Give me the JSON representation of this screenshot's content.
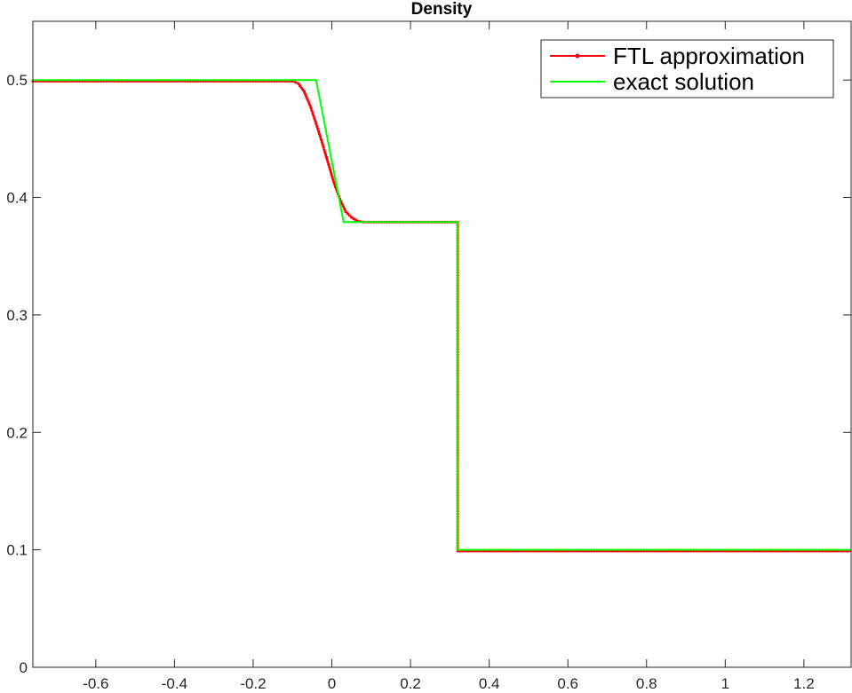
{
  "chart_data": {
    "type": "line",
    "title": "Density",
    "xlabel": "",
    "ylabel": "",
    "xlim": [
      -0.76,
      1.32
    ],
    "ylim": [
      0,
      0.55
    ],
    "x_ticks": [
      -0.6,
      -0.4,
      -0.2,
      0,
      0.2,
      0.4,
      0.6,
      0.8,
      1,
      1.2
    ],
    "x_tick_labels": [
      "-0.6",
      "-0.4",
      "-0.2",
      "0",
      "0.2",
      "0.4",
      "0.6",
      "0.8",
      "1",
      "1.2"
    ],
    "y_ticks": [
      0,
      0.1,
      0.2,
      0.3,
      0.4,
      0.5
    ],
    "y_tick_labels": [
      "0",
      "0.1",
      "0.2",
      "0.3",
      "0.4",
      "0.5"
    ],
    "grid": false,
    "legend_position": "top-right",
    "series": [
      {
        "name": "FTL approximation",
        "color": "#ff0000",
        "marker": "dot",
        "x": [
          -0.76,
          -0.6,
          -0.4,
          -0.2,
          -0.1,
          -0.085,
          -0.07,
          -0.055,
          -0.04,
          -0.025,
          -0.01,
          0.005,
          0.02,
          0.035,
          0.05,
          0.065,
          0.08,
          0.1,
          0.2,
          0.32,
          0.32,
          0.4,
          0.6,
          0.8,
          1.0,
          1.2,
          1.32
        ],
        "y": [
          0.499,
          0.499,
          0.499,
          0.499,
          0.499,
          0.497,
          0.49,
          0.478,
          0.463,
          0.447,
          0.43,
          0.413,
          0.399,
          0.388,
          0.383,
          0.38,
          0.379,
          0.379,
          0.379,
          0.379,
          0.099,
          0.099,
          0.099,
          0.099,
          0.099,
          0.099,
          0.099
        ]
      },
      {
        "name": "exact solution",
        "color": "#00ff00",
        "x": [
          -0.76,
          -0.04,
          0.03,
          0.32,
          0.32,
          1.32
        ],
        "y": [
          0.5,
          0.5,
          0.379,
          0.379,
          0.1,
          0.1
        ]
      }
    ]
  },
  "colors": {
    "axes": "#262626",
    "approx": "#ff0000",
    "exact": "#00ff00"
  }
}
